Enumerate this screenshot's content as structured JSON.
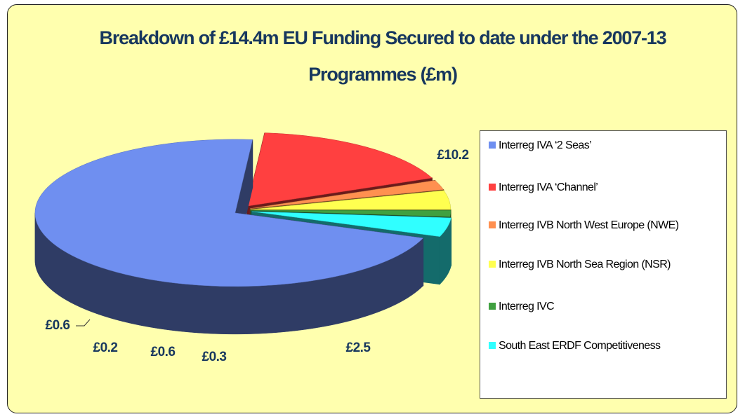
{
  "chart_data": {
    "type": "pie",
    "title": "Breakdown of £14.4m EU Funding Secured to date under the 2007-13 Programmes (£m)",
    "categories": [
      "Interreg IVA ‘2 Seas’",
      "Interreg IVA ‘Channel’",
      "Interreg IVB North West Europe (NWE)",
      "Interreg IVB North Sea Region (NSR)",
      "Interreg IVC",
      "South East ERDF Competitiveness"
    ],
    "values": [
      10.2,
      2.5,
      0.3,
      0.6,
      0.2,
      0.6
    ],
    "value_labels": [
      "£10.2",
      "£2.5",
      "£0.3",
      "£0.6",
      "£0.2",
      "£0.6"
    ],
    "colors": [
      "#6f8ff0",
      "#ff4040",
      "#ff9050",
      "#ffff50",
      "#40a040",
      "#30ffff"
    ],
    "legend": "right"
  }
}
